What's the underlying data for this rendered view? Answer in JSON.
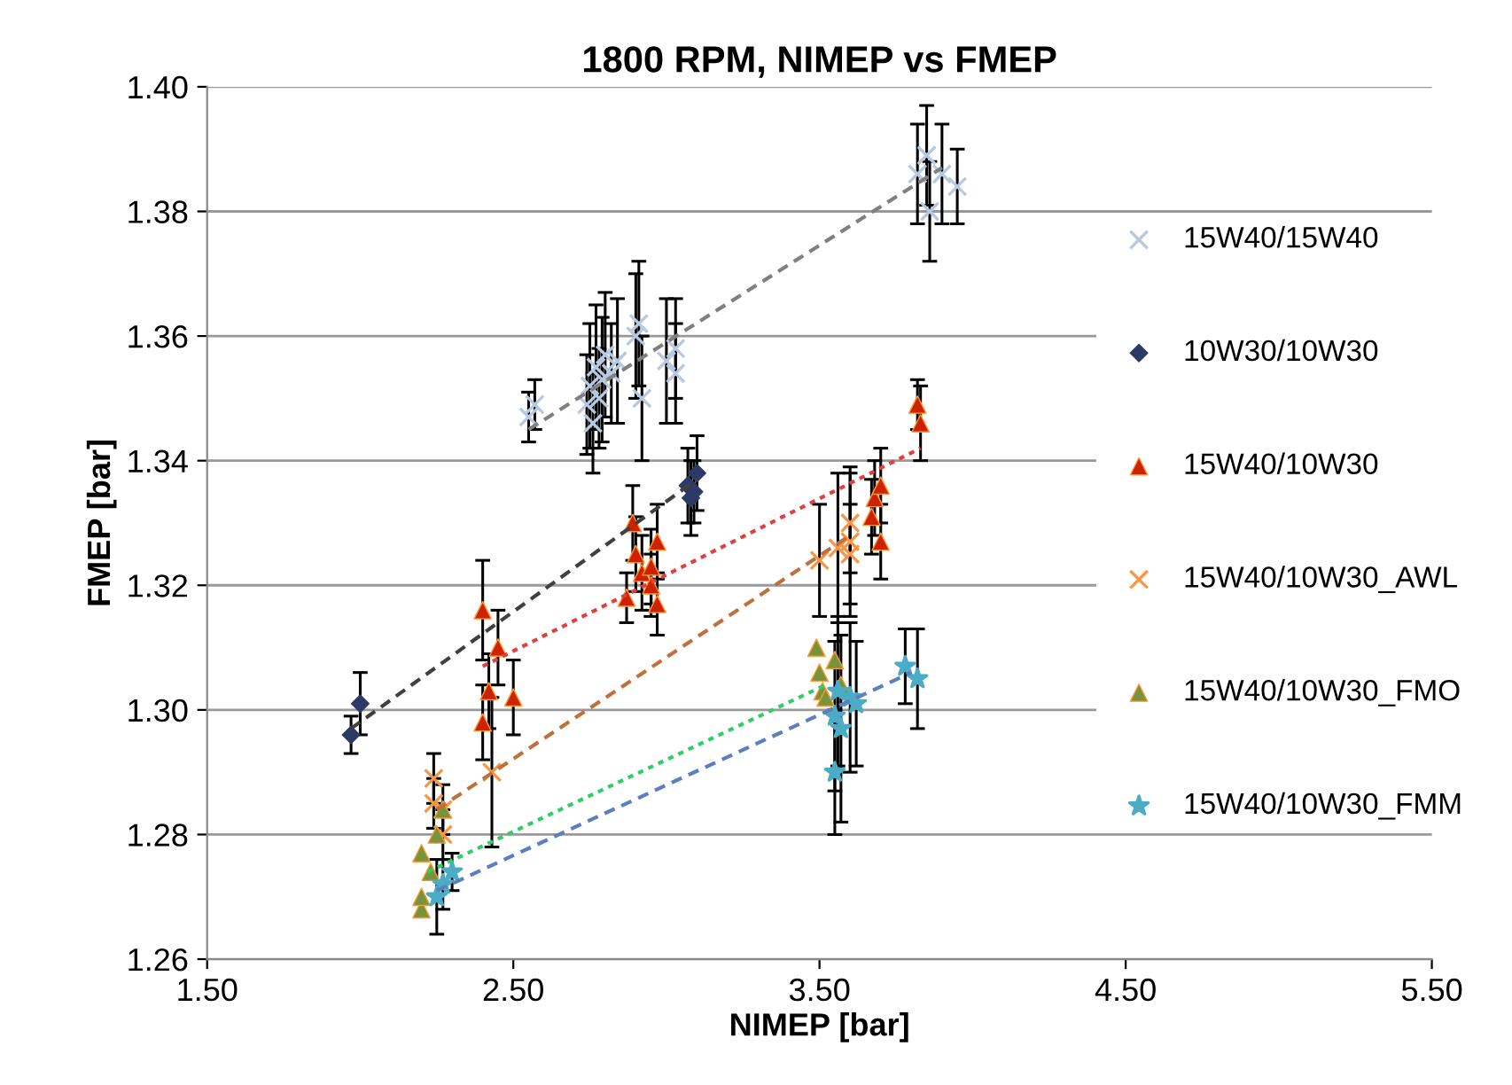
{
  "chart_data": {
    "type": "scatter",
    "title": "1800 RPM, NIMEP vs FMEP",
    "xlabel": "NIMEP [bar]",
    "ylabel": "FMEP [bar]",
    "xlim": [
      1.5,
      5.5
    ],
    "ylim": [
      1.26,
      1.4
    ],
    "xticks": [
      {
        "value": 1.5,
        "label": "1.50"
      },
      {
        "value": 2.5,
        "label": "2.50"
      },
      {
        "value": 3.5,
        "label": "3.50"
      },
      {
        "value": 4.5,
        "label": "4.50"
      },
      {
        "value": 5.5,
        "label": "5.50"
      }
    ],
    "yticks": [
      1.26,
      1.28,
      {
        "value": 1.3,
        "label": "1.30"
      },
      1.32,
      1.34,
      1.36,
      1.38,
      {
        "value": 1.4,
        "label": "1.40"
      }
    ],
    "grid": "y",
    "legend": "right",
    "series": [
      {
        "name": "15W40/15W40",
        "marker": "cross",
        "color": "#b8c8e0",
        "x": [
          2.55,
          2.57,
          2.74,
          2.75,
          2.76,
          2.77,
          2.78,
          2.79,
          2.8,
          2.82,
          2.84,
          2.9,
          2.91,
          2.92,
          3.0,
          3.03,
          3.03,
          3.82,
          3.85,
          3.86,
          3.9,
          3.95
        ],
        "values": [
          1.347,
          1.349,
          1.349,
          1.352,
          1.346,
          1.355,
          1.35,
          1.353,
          1.357,
          1.354,
          1.356,
          1.36,
          1.362,
          1.35,
          1.356,
          1.358,
          1.354,
          1.386,
          1.389,
          1.38,
          1.386,
          1.384
        ],
        "errors": [
          0.004,
          0.004,
          0.008,
          0.01,
          0.008,
          0.01,
          0.008,
          0.01,
          0.01,
          0.008,
          0.01,
          0.01,
          0.01,
          0.01,
          0.01,
          0.008,
          0.008,
          0.008,
          0.008,
          0.008,
          0.008,
          0.006
        ]
      },
      {
        "name": "10W30/10W30",
        "marker": "diamond",
        "color": "#2e3a66",
        "x": [
          1.97,
          2.0,
          3.07,
          3.08,
          3.09,
          3.1
        ],
        "values": [
          1.296,
          1.301,
          1.336,
          1.334,
          1.335,
          1.338
        ],
        "errors": [
          0.003,
          0.005,
          0.006,
          0.006,
          0.005,
          0.006
        ]
      },
      {
        "name": "15W40/10W30",
        "marker": "triangle",
        "color": "#cc2200",
        "x": [
          2.4,
          2.4,
          2.42,
          2.45,
          2.5,
          2.87,
          2.89,
          2.9,
          2.92,
          2.95,
          2.97,
          2.95,
          2.97,
          3.67,
          3.68,
          3.7,
          3.7,
          3.82,
          3.83
        ],
        "values": [
          1.316,
          1.298,
          1.303,
          1.31,
          1.302,
          1.318,
          1.33,
          1.325,
          1.322,
          1.323,
          1.327,
          1.32,
          1.317,
          1.331,
          1.334,
          1.336,
          1.327,
          1.349,
          1.346
        ],
        "errors": [
          0.008,
          0.006,
          0.006,
          0.006,
          0.006,
          0.004,
          0.006,
          0.006,
          0.006,
          0.006,
          0.006,
          0.005,
          0.005,
          0.006,
          0.006,
          0.006,
          0.006,
          0.004,
          0.006
        ]
      },
      {
        "name": "15W40/10W30_AWL",
        "marker": "cross",
        "color": "#f79646",
        "x": [
          2.24,
          2.24,
          2.27,
          2.27,
          2.43,
          3.5,
          3.56,
          3.6,
          3.6,
          3.6
        ],
        "values": [
          1.289,
          1.285,
          1.284,
          1.28,
          1.29,
          1.324,
          1.326,
          1.327,
          1.33,
          1.325
        ],
        "errors": [
          0.004,
          0.004,
          0.004,
          0.004,
          0.012,
          0.009,
          0.012,
          0.012,
          0.008,
          0.008
        ]
      },
      {
        "name": "15W40/10W30_FMO",
        "marker": "triangle",
        "color": "#77933c",
        "x": [
          2.2,
          2.2,
          2.2,
          2.23,
          2.25,
          2.27,
          3.49,
          3.5,
          3.51,
          3.52,
          3.55,
          3.57
        ],
        "values": [
          1.277,
          1.268,
          1.27,
          1.274,
          1.28,
          1.284,
          1.31,
          1.306,
          1.303,
          1.302,
          1.308,
          1.304
        ]
      },
      {
        "name": "15W40/10W30_FMM",
        "marker": "star",
        "color": "#4bacc6",
        "x": [
          2.25,
          2.27,
          2.3,
          3.55,
          3.55,
          3.56,
          3.57,
          3.6,
          3.62,
          3.78,
          3.82
        ],
        "values": [
          1.27,
          1.272,
          1.274,
          1.299,
          1.29,
          1.303,
          1.297,
          1.302,
          1.301,
          1.307,
          1.305
        ],
        "errors": [
          0.006,
          0.004,
          0.003,
          0.012,
          0.01,
          0.012,
          0.015,
          0.012,
          0.01,
          0.006,
          0.008
        ]
      },
      {
        "type": "line",
        "line_style": "dashed",
        "color": "#808080",
        "x": [
          2.55,
          3.9
        ],
        "values": [
          1.345,
          1.387
        ]
      },
      {
        "type": "line",
        "line_style": "dashed",
        "color": "#404040",
        "x": [
          1.97,
          3.1
        ],
        "values": [
          1.297,
          1.337
        ]
      },
      {
        "type": "line",
        "line_style": "dotted",
        "color": "#e04040",
        "x": [
          2.4,
          3.83
        ],
        "values": [
          1.307,
          1.342
        ]
      },
      {
        "type": "line",
        "line_style": "dashed",
        "color": "#c0703a",
        "x": [
          2.25,
          3.6
        ],
        "values": [
          1.284,
          1.328
        ]
      },
      {
        "type": "line",
        "line_style": "dotted",
        "color": "#33cc66",
        "x": [
          2.22,
          3.52
        ],
        "values": [
          1.274,
          1.304
        ]
      },
      {
        "type": "line",
        "line_style": "dashed",
        "color": "#5b7fbf",
        "x": [
          2.25,
          3.8
        ],
        "values": [
          1.271,
          1.306
        ]
      }
    ]
  }
}
